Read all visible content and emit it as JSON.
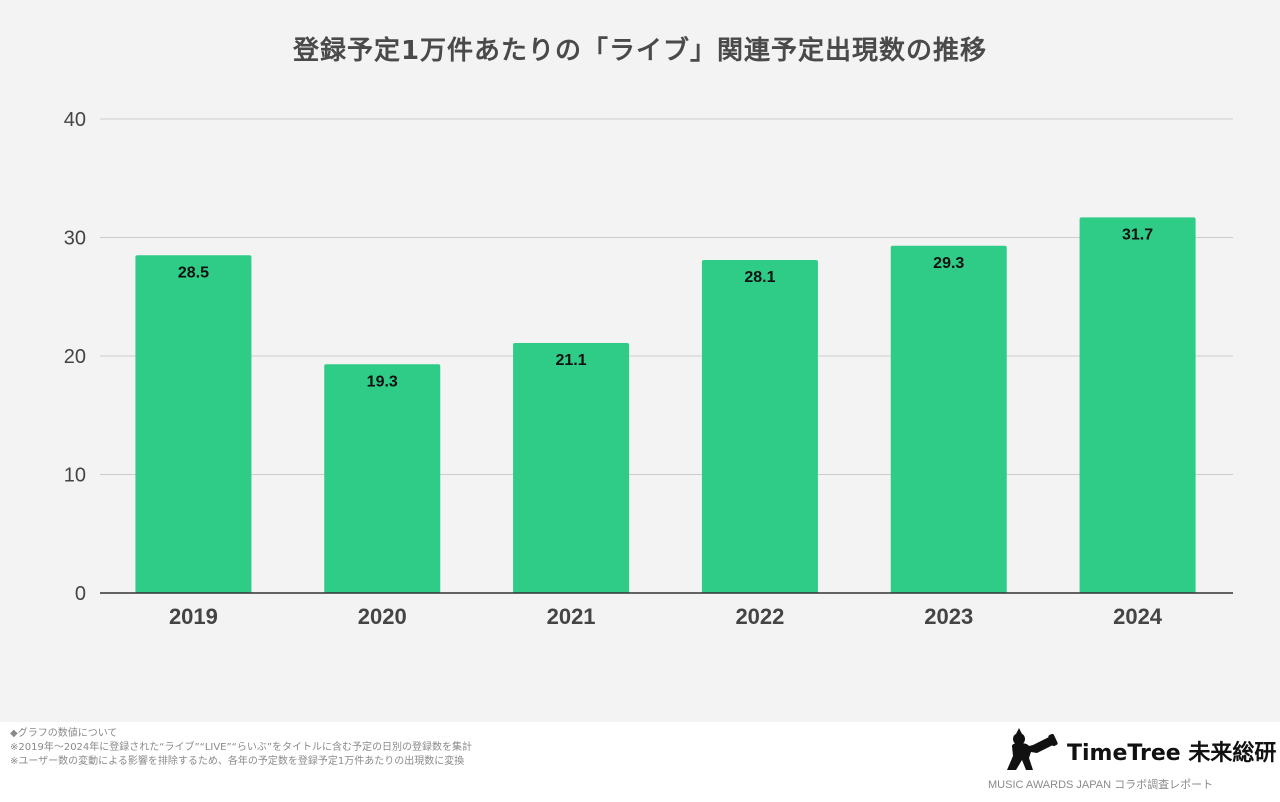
{
  "chart_data": {
    "type": "bar",
    "title": "登録予定1万件あたりの「ライブ」関連予定出現数の推移",
    "categories": [
      "2019",
      "2020",
      "2021",
      "2022",
      "2023",
      "2024"
    ],
    "values": [
      28.5,
      19.3,
      21.1,
      28.1,
      29.3,
      31.7
    ],
    "value_labels": [
      "28.5",
      "19.3",
      "21.1",
      "28.1",
      "29.3",
      "31.7"
    ],
    "xlabel": "",
    "ylabel": "",
    "ylim": [
      0,
      40
    ],
    "yticks": [
      0,
      10,
      20,
      30,
      40
    ],
    "grid": true,
    "bar_color": "#2ecc87"
  },
  "notes": [
    "◆グラフの数値について",
    "※2019年～2024年に登録された“ライブ”“LIVE”“らいぶ”をタイトルに含む予定の日別の登録数を集計",
    "※ユーザー数の変動による影響を排除するため、各年の予定数を登録予定1万件あたりの出現数に変換"
  ],
  "brand": {
    "name": "TimeTree 未来総研",
    "tagline": "MUSIC AWARDS JAPAN コラボ調査レポート",
    "icon": "timetree-logo-icon"
  },
  "colors": {
    "panel_background": "#f3f3f3",
    "gridline": "#cccccc",
    "axis": "#333333",
    "title_text": "#4a4a4a"
  }
}
